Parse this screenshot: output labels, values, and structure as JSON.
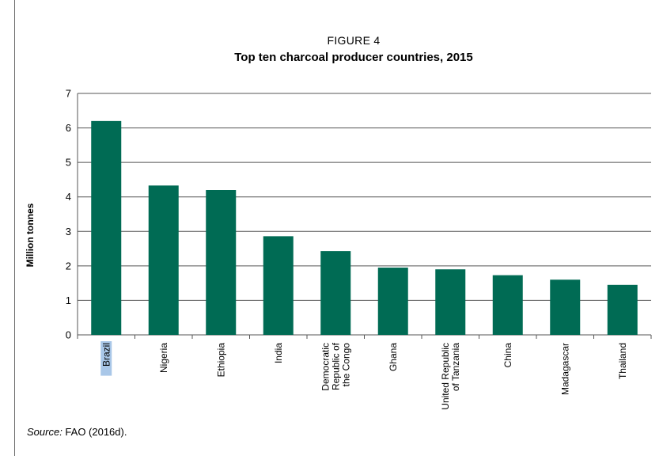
{
  "figure_label": "FIGURE 4",
  "source_prefix": "Source:",
  "source_text": " FAO (2016d).",
  "colors": {
    "bar": "#006b54",
    "grid": "#555555",
    "highlight": "#a9c7e8"
  },
  "chart_data": {
    "type": "bar",
    "title": "Top ten charcoal producer countries, 2015",
    "xlabel": "",
    "ylabel": "Million tonnes",
    "ylim": [
      0,
      7
    ],
    "yticks": [
      0,
      1,
      2,
      3,
      4,
      5,
      6,
      7
    ],
    "grid": true,
    "categories": [
      [
        "Brazil"
      ],
      [
        "Nigeria"
      ],
      [
        "Ethiopia"
      ],
      [
        "India"
      ],
      [
        "Democratic",
        "Republic of",
        "the Congo"
      ],
      [
        "Ghana"
      ],
      [
        "United Republic",
        "of Tanzania"
      ],
      [
        "China"
      ],
      [
        "Madagascar"
      ],
      [
        "Thailand"
      ]
    ],
    "values": [
      6.2,
      4.33,
      4.2,
      2.86,
      2.43,
      1.95,
      1.9,
      1.73,
      1.6,
      1.45
    ],
    "highlighted_category": "Brazil"
  }
}
